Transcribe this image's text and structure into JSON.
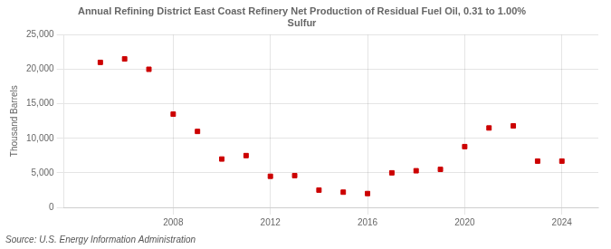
{
  "chart_data": {
    "type": "scatter",
    "title": "Annual Refining District East Coast Refinery Net Production of Residual Fuel Oil, 0.31 to 1.00%\nSulfur",
    "ylabel": "Thousand Barrels",
    "source": "Source: U.S. Energy Information Administration",
    "x": [
      2005,
      2006,
      2007,
      2008,
      2009,
      2010,
      2011,
      2012,
      2013,
      2014,
      2015,
      2016,
      2017,
      2018,
      2019,
      2020,
      2021,
      2022,
      2023,
      2024
    ],
    "values": [
      21000,
      21500,
      20000,
      13500,
      11000,
      7000,
      7500,
      4500,
      4600,
      2500,
      2200,
      2000,
      5000,
      5300,
      5500,
      8800,
      11500,
      11800,
      6700,
      6700
    ],
    "color": "#cc0000",
    "marker": "square",
    "xlim": [
      2003.5,
      2025.5
    ],
    "xticks": [
      2008,
      2012,
      2016,
      2020,
      2024
    ],
    "ylim": [
      0,
      25000
    ],
    "yticks": [
      0,
      {
        "value": 5000,
        "label": "5,000"
      },
      {
        "value": 10000,
        "label": "10,000"
      },
      {
        "value": 15000,
        "label": "15,000"
      },
      {
        "value": 20000,
        "label": "20,000"
      },
      {
        "value": 25000,
        "label": "25,000"
      }
    ],
    "grid": true
  }
}
